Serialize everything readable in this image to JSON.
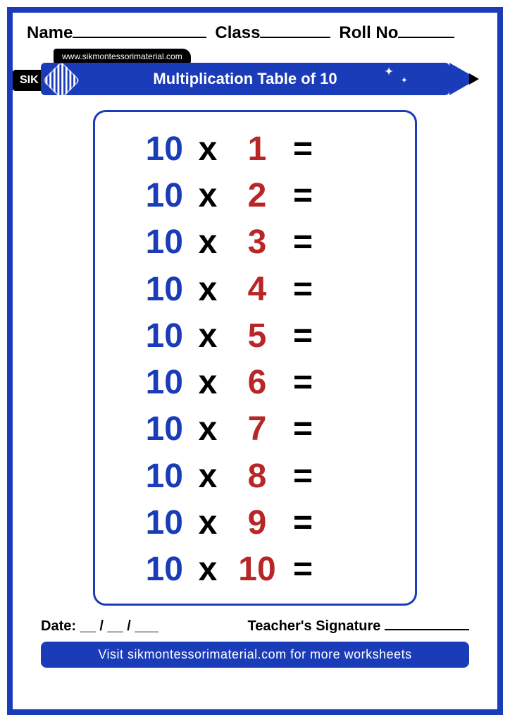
{
  "header": {
    "name_label": "Name",
    "class_label": "Class",
    "roll_label": "Roll No",
    "name_line_width": 190,
    "class_line_width": 100,
    "roll_line_width": 80
  },
  "pencil": {
    "url_text": "www.sikmontessorimaterial.com",
    "brand": "SIK",
    "title": "Multiplication Table of 10"
  },
  "table": {
    "multiplicand": "10",
    "operator": "x",
    "equals": "=",
    "multiplicand_color": "#1a3cb8",
    "operator_color": "#000000",
    "multiplier_color": "#b82626",
    "equals_color": "#000000",
    "rows": [
      {
        "multiplier": "1"
      },
      {
        "multiplier": "2"
      },
      {
        "multiplier": "3"
      },
      {
        "multiplier": "4"
      },
      {
        "multiplier": "5"
      },
      {
        "multiplier": "6"
      },
      {
        "multiplier": "7"
      },
      {
        "multiplier": "8"
      },
      {
        "multiplier": "9"
      },
      {
        "multiplier": "10"
      }
    ]
  },
  "footer": {
    "date_label": "Date: __ / __ / ___",
    "signature_label": "Teacher's Signature",
    "visit_text": "Visit sikmontessorimaterial.com for more worksheets"
  },
  "colors": {
    "border": "#1a3cb8",
    "pencil": "#1a3cb8",
    "background": "#ffffff"
  }
}
